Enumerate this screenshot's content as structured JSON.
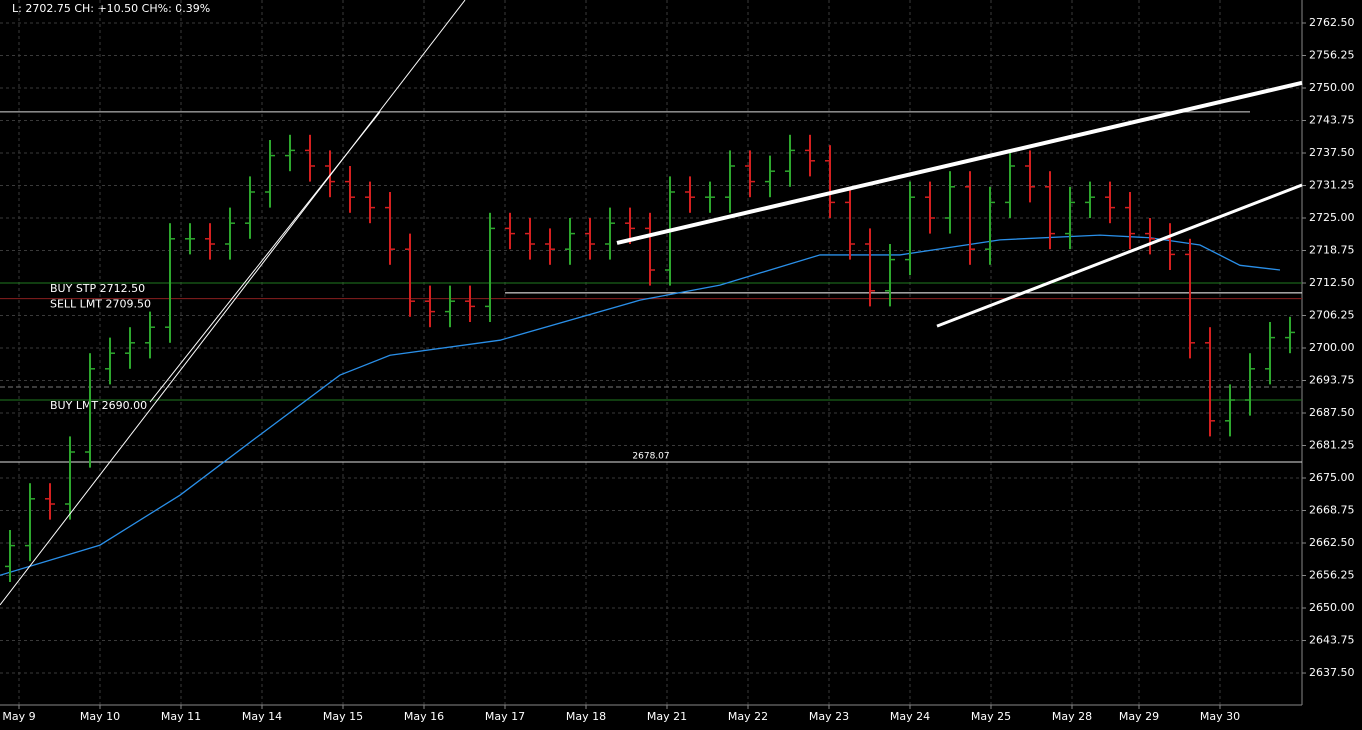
{
  "chart_data": {
    "type": "ohlc",
    "header": "L: 2702.75 CH: +10.50 CH%: 0.39%",
    "up_color": "#2ea82e",
    "down_color": "#d62020",
    "grid": true,
    "xlim": [
      0,
      65.1
    ],
    "ylim": [
      2631.35,
      2766.92
    ],
    "xticks": [
      {
        "value": 0.95,
        "label": "May 9"
      },
      {
        "value": 5,
        "label": "May 10"
      },
      {
        "value": 9.05,
        "label": "May 11"
      },
      {
        "value": 13.1,
        "label": "May 14"
      },
      {
        "value": 17.15,
        "label": "May 15"
      },
      {
        "value": 21.2,
        "label": "May 16"
      },
      {
        "value": 25.25,
        "label": "May 17"
      },
      {
        "value": 29.3,
        "label": "May 18"
      },
      {
        "value": 33.35,
        "label": "May 21"
      },
      {
        "value": 37.4,
        "label": "May 22"
      },
      {
        "value": 41.45,
        "label": "May 23"
      },
      {
        "value": 45.5,
        "label": "May 24"
      },
      {
        "value": 49.55,
        "label": "May 25"
      },
      {
        "value": 53.6,
        "label": "May 28"
      },
      {
        "value": 56.95,
        "label": "May 29"
      },
      {
        "value": 61,
        "label": "May 30"
      }
    ],
    "yticks": [
      {
        "value": 2762.5,
        "label": "2762.50"
      },
      {
        "value": 2756.25,
        "label": "2756.25"
      },
      {
        "value": 2750,
        "label": "2750.00"
      },
      {
        "value": 2743.75,
        "label": "2743.75"
      },
      {
        "value": 2737.5,
        "label": "2737.50"
      },
      {
        "value": 2731.25,
        "label": "2731.25"
      },
      {
        "value": 2725,
        "label": "2725.00"
      },
      {
        "value": 2718.75,
        "label": "2718.75"
      },
      {
        "value": 2712.5,
        "label": "2712.50"
      },
      {
        "value": 2706.25,
        "label": "2706.25"
      },
      {
        "value": 2700,
        "label": "2700.00"
      },
      {
        "value": 2693.75,
        "label": "2693.75"
      },
      {
        "value": 2687.5,
        "label": "2687.50"
      },
      {
        "value": 2681.25,
        "label": "2681.25"
      },
      {
        "value": 2675,
        "label": "2675.00"
      },
      {
        "value": 2668.75,
        "label": "2668.75"
      },
      {
        "value": 2662.5,
        "label": "2662.50"
      },
      {
        "value": 2656.25,
        "label": "2656.25"
      },
      {
        "value": 2650,
        "label": "2650.00"
      },
      {
        "value": 2643.75,
        "label": "2643.75"
      },
      {
        "value": 2637.5,
        "label": "2637.50"
      }
    ],
    "x": [
      0.5,
      1.5,
      2.5,
      3.5,
      4.5,
      5.5,
      6.5,
      7.5,
      8.5,
      9.5,
      10.5,
      11.5,
      12.5,
      13.5,
      14.5,
      15.5,
      16.5,
      17.5,
      18.5,
      19.5,
      20.5,
      21.5,
      22.5,
      23.5,
      24.5,
      25.5,
      26.5,
      27.5,
      28.5,
      29.5,
      30.5,
      31.5,
      32.5,
      33.5,
      34.5,
      35.5,
      36.5,
      37.5,
      38.5,
      39.5,
      40.5,
      41.5,
      42.5,
      43.5,
      44.5,
      45.5,
      46.5,
      47.5,
      48.5,
      49.5,
      50.5,
      51.5,
      52.5,
      53.5,
      54.5,
      55.5,
      56.5,
      57.5,
      58.5,
      59.5,
      60.5,
      61.5,
      62.5,
      63.5,
      64.5
    ],
    "open": [
      2658,
      2662,
      2671,
      2670,
      2680,
      2696,
      2699,
      2701,
      2704,
      2721,
      2721,
      2720,
      2724,
      2730,
      2737,
      2738,
      2735,
      2732,
      2729,
      2727,
      2719,
      2709,
      2707,
      2709,
      2708,
      2723,
      2722,
      2720,
      2719,
      2722,
      2720,
      2724,
      2723,
      2715,
      2730,
      2729,
      2729,
      2735,
      2732,
      2734,
      2738,
      2736,
      2728,
      2720,
      2711,
      2717,
      2729,
      2725,
      2731,
      2719,
      2728,
      2735,
      2731,
      2722,
      2728,
      2729,
      2727,
      2722,
      2721,
      2718,
      2701,
      2686,
      2690,
      2696,
      2702
    ],
    "high": [
      2665,
      2674,
      2674,
      2683,
      2699,
      2702,
      2704,
      2707,
      2724,
      2724,
      2724,
      2727,
      2733,
      2740,
      2741,
      2741,
      2738,
      2735,
      2732,
      2730,
      2722,
      2712,
      2712,
      2712,
      2726,
      2726,
      2725,
      2723,
      2725,
      2725,
      2727,
      2727,
      2726,
      2733,
      2733,
      2732,
      2738,
      2738,
      2737,
      2741,
      2741,
      2739,
      2731,
      2723,
      2720,
      2732,
      2732,
      2734,
      2734,
      2731,
      2738,
      2738,
      2734,
      2731,
      2732,
      2732,
      2730,
      2725,
      2724,
      2721,
      2704,
      2693,
      2699,
      2705,
      2706
    ],
    "low": [
      2655,
      2659,
      2667,
      2667,
      2677,
      2693,
      2696,
      2698,
      2701,
      2718,
      2717,
      2717,
      2721,
      2727,
      2734,
      2732,
      2729,
      2726,
      2724,
      2716,
      2706,
      2704,
      2704,
      2705,
      2705,
      2719,
      2717,
      2716,
      2716,
      2717,
      2717,
      2720,
      2712,
      2712,
      2726,
      2726,
      2726,
      2729,
      2729,
      2731,
      2733,
      2725,
      2717,
      2708,
      2708,
      2714,
      2722,
      2722,
      2716,
      2716,
      2725,
      2728,
      2719,
      2719,
      2725,
      2724,
      2719,
      2718,
      2715,
      2698,
      2683,
      2683,
      2687,
      2693,
      2699
    ],
    "close": [
      2662,
      2671,
      2670,
      2680,
      2696,
      2699,
      2701,
      2704,
      2721,
      2721,
      2720,
      2724,
      2730,
      2737,
      2738,
      2735,
      2732,
      2729,
      2727,
      2719,
      2709,
      2707,
      2709,
      2708,
      2723,
      2722,
      2720,
      2719,
      2722,
      2720,
      2724,
      2723,
      2715,
      2730,
      2729,
      2729,
      2735,
      2732,
      2734,
      2738,
      2736,
      2728,
      2720,
      2711,
      2717,
      2729,
      2725,
      2731,
      2719,
      2728,
      2735,
      2731,
      2722,
      2728,
      2729,
      2727,
      2722,
      2721,
      2718,
      2701,
      2686,
      2690,
      2696,
      2702,
      2703
    ],
    "ma": {
      "color": "#2a8fe8",
      "x": [
        0,
        5,
        9,
        13,
        17,
        19.5,
        25,
        32,
        36,
        41,
        45,
        50,
        55,
        57.5,
        60,
        62,
        64
      ],
      "values": [
        2656.3,
        2662.1,
        2671.7,
        2683.3,
        2694.8,
        2698.6,
        2701.5,
        2709.2,
        2712.1,
        2717.9,
        2717.9,
        2720.8,
        2721.7,
        2721.2,
        2719.8,
        2715.9,
        2715
      ]
    },
    "orders": [
      {
        "label": "BUY STP 2712.50",
        "value": 2712.5,
        "color": "#1f7a1f"
      },
      {
        "label": "SELL LMT 2709.50",
        "value": 2709.5,
        "color": "#8a1f1f"
      },
      {
        "label": "BUY LMT 2690.00",
        "value": 2690,
        "color": "#1f7a1f"
      }
    ],
    "hlines": [
      {
        "value": 2745.4,
        "x": [
          0,
          62.5
        ],
        "color": "#d8d8d8"
      },
      {
        "value": 2710.6,
        "x": [
          25.25,
          65.1
        ],
        "color": "#ffffff"
      },
      {
        "value": 2692.5,
        "x": [
          0,
          65.1
        ],
        "color": "#777777"
      }
    ],
    "level": {
      "value": 2678.07,
      "color": "#e0e0e0"
    },
    "trendlines": [
      {
        "x": [
          0,
          23.25
        ],
        "y": [
          2650.6,
          2766.9
        ],
        "width": 1
      },
      {
        "x": [
          7.5,
          19
        ],
        "y": [
          2689.6,
          2745.4
        ],
        "width": 1
      },
      {
        "x": [
          30.85,
          65.1
        ],
        "y": [
          2720.2,
          2751
        ],
        "width": 4
      },
      {
        "x": [
          46.85,
          65.1
        ],
        "y": [
          2704.2,
          2731.35
        ],
        "width": 3
      }
    ]
  }
}
